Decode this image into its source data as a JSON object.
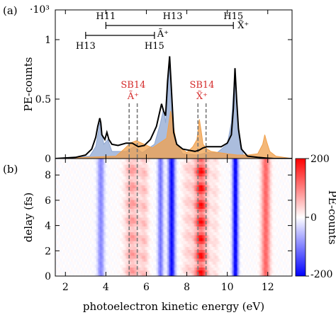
{
  "colors": {
    "total_line": "#000000",
    "fill_blue": "#8fa7d1",
    "fill_orange": "#f0a04c",
    "sideband_red": "#d42a2a",
    "guide_dash": "#777777",
    "cmap_negative": "#0000ff",
    "cmap_zero": "#ffffff",
    "cmap_positive": "#ff0000"
  },
  "chart_data": [
    {
      "type": "line",
      "panel_label": "(a)",
      "ylabel": "PE-counts",
      "y_multiplier": "·10³",
      "ylim": [
        0,
        1.25
      ],
      "yticks": [
        {
          "value": 0,
          "label": "0"
        },
        {
          "value": 0.5,
          "label": "0.5"
        },
        {
          "value": 1,
          "label": "1"
        }
      ],
      "xlim": [
        1.5,
        13.2
      ],
      "series": [
        {
          "role": "total",
          "x": [
            1.5,
            2.5,
            3.0,
            3.3,
            3.5,
            3.6,
            3.7,
            3.75,
            3.8,
            3.95,
            4.05,
            4.15,
            4.3,
            4.6,
            5.0,
            5.3,
            5.6,
            5.9,
            6.2,
            6.5,
            6.75,
            6.85,
            6.95,
            7.05,
            7.15,
            7.25,
            7.35,
            7.5,
            7.8,
            8.1,
            8.4,
            8.6,
            8.8,
            9.0,
            9.3,
            9.7,
            10.0,
            10.2,
            10.3,
            10.38,
            10.46,
            10.55,
            10.7,
            11.0,
            11.5,
            11.9,
            12.3,
            13.2
          ],
          "y": [
            0.0,
            0.01,
            0.03,
            0.08,
            0.18,
            0.27,
            0.34,
            0.3,
            0.2,
            0.16,
            0.22,
            0.16,
            0.12,
            0.11,
            0.13,
            0.13,
            0.1,
            0.11,
            0.16,
            0.27,
            0.46,
            0.4,
            0.36,
            0.65,
            0.86,
            0.55,
            0.22,
            0.12,
            0.08,
            0.07,
            0.06,
            0.07,
            0.09,
            0.1,
            0.1,
            0.1,
            0.13,
            0.2,
            0.42,
            0.76,
            0.5,
            0.25,
            0.08,
            0.02,
            0.01,
            0.005,
            0.0,
            0.0
          ]
        },
        {
          "role": "component-blue",
          "x": [
            1.5,
            3.2,
            3.5,
            3.7,
            3.9,
            4.1,
            4.3,
            5.0,
            5.4,
            5.8,
            6.4,
            6.7,
            6.85,
            6.95,
            7.05,
            7.15,
            7.25,
            7.4,
            7.8,
            8.5,
            9.0,
            9.5,
            10.0,
            10.2,
            10.38,
            10.55,
            10.8,
            11.5,
            13.2
          ],
          "y": [
            0.0,
            0.02,
            0.1,
            0.3,
            0.12,
            0.16,
            0.06,
            0.06,
            0.1,
            0.05,
            0.12,
            0.3,
            0.42,
            0.3,
            0.55,
            0.82,
            0.5,
            0.15,
            0.04,
            0.03,
            0.05,
            0.05,
            0.12,
            0.3,
            0.74,
            0.2,
            0.03,
            0.0,
            0.0
          ]
        },
        {
          "role": "component-orange",
          "x": [
            1.5,
            4.5,
            4.9,
            5.2,
            5.5,
            5.9,
            6.3,
            7.0,
            7.2,
            7.5,
            8.0,
            8.3,
            8.5,
            8.62,
            8.72,
            8.8,
            9.0,
            9.2,
            9.6,
            10.0,
            10.5,
            11.0,
            11.5,
            11.75,
            11.85,
            11.95,
            12.1,
            12.4,
            13.2
          ],
          "y": [
            0.0,
            0.02,
            0.08,
            0.13,
            0.15,
            0.12,
            0.09,
            0.17,
            0.4,
            0.12,
            0.05,
            0.1,
            0.16,
            0.33,
            0.22,
            0.12,
            0.08,
            0.06,
            0.05,
            0.04,
            0.03,
            0.03,
            0.04,
            0.12,
            0.2,
            0.14,
            0.06,
            0.02,
            0.0
          ]
        }
      ],
      "harmonic_bars": [
        {
          "row": "upper",
          "start_label": "H11",
          "end_label": "H15",
          "x_start": 4.0,
          "x_mid": 7.3,
          "x_end": 10.3,
          "mid_label": "H13",
          "species_label": "X̃⁺"
        },
        {
          "row": "lower",
          "start_label": "H13",
          "end_label": "H15",
          "x_start": 3.0,
          "x_end": 6.4,
          "species_label": "Ã⁺"
        }
      ],
      "sidebands": [
        {
          "label": "SB14",
          "species_label": "Ã⁺",
          "x_left": 5.15,
          "x_right": 5.55
        },
        {
          "label": "SB14",
          "species_label": "X̃⁺",
          "x_left": 8.55,
          "x_right": 8.95
        }
      ]
    },
    {
      "type": "heatmap",
      "panel_label": "(b)",
      "xlabel": "photoelectron kinetic energy (eV)",
      "ylabel": "delay (fs)",
      "xlim": [
        1.5,
        13.2
      ],
      "ylim": [
        0,
        9.3
      ],
      "xticks": [
        {
          "value": 2,
          "label": "2"
        },
        {
          "value": 4,
          "label": "4"
        },
        {
          "value": 6,
          "label": "6"
        },
        {
          "value": 8,
          "label": "8"
        },
        {
          "value": 10,
          "label": "10"
        },
        {
          "value": 12,
          "label": "12"
        }
      ],
      "yticks": [
        {
          "value": 0,
          "label": "0"
        },
        {
          "value": 2,
          "label": "2"
        },
        {
          "value": 4,
          "label": "4"
        },
        {
          "value": 6,
          "label": "6"
        },
        {
          "value": 8,
          "label": "8"
        }
      ],
      "oscillation_period_fs": 1.33,
      "bands": [
        {
          "center": 3.75,
          "width": 0.12,
          "amplitude": -95,
          "oscillating": false
        },
        {
          "center": 5.3,
          "width": 0.25,
          "amplitude": 85,
          "oscillating": true
        },
        {
          "center": 5.9,
          "width": 0.15,
          "amplitude": 55,
          "oscillating": true
        },
        {
          "center": 6.7,
          "width": 0.1,
          "amplitude": -110,
          "oscillating": false
        },
        {
          "center": 7.25,
          "width": 0.12,
          "amplitude": -190,
          "oscillating": false
        },
        {
          "center": 8.05,
          "width": 0.2,
          "amplitude": 40,
          "oscillating": true
        },
        {
          "center": 8.7,
          "width": 0.22,
          "amplitude": 200,
          "oscillating": true
        },
        {
          "center": 9.4,
          "width": 0.15,
          "amplitude": 30,
          "oscillating": true
        },
        {
          "center": 10.4,
          "width": 0.1,
          "amplitude": -200,
          "oscillating": false
        },
        {
          "center": 11.9,
          "width": 0.15,
          "amplitude": 120,
          "oscillating": false
        }
      ],
      "colorbar": {
        "label": "PE-counts",
        "range": [
          -200,
          200
        ],
        "ticks": [
          {
            "value": 200,
            "label": "200"
          },
          {
            "value": 0,
            "label": "0"
          },
          {
            "value": -200,
            "label": "-200"
          }
        ]
      }
    }
  ]
}
